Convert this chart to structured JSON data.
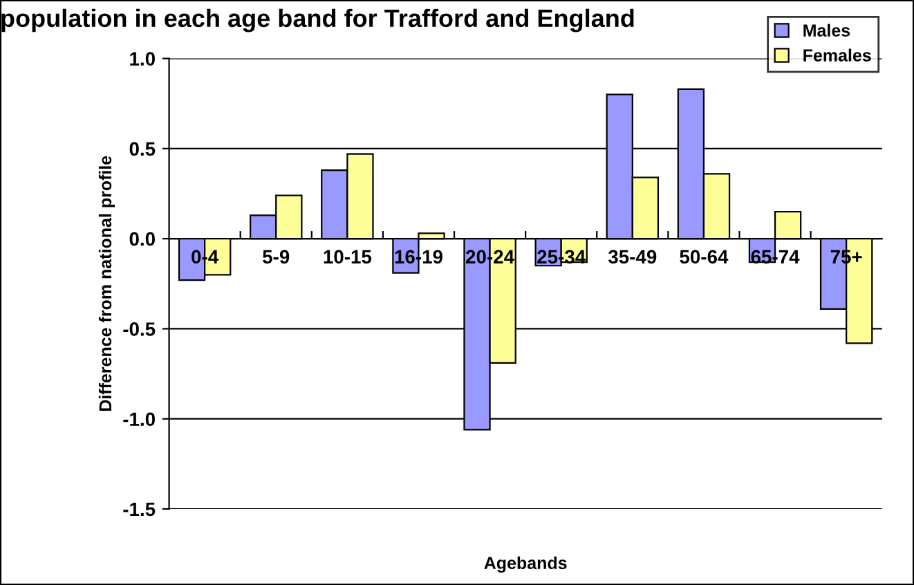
{
  "chart_data": {
    "type": "bar",
    "title": "population in each age band for Trafford and England",
    "xlabel": "Agebands",
    "ylabel": "Difference from national profile",
    "categories": [
      "0-4",
      "5-9",
      "10-15",
      "16-19",
      "20-24",
      "25-34",
      "35-49",
      "50-64",
      "65-74",
      "75+"
    ],
    "series": [
      {
        "name": "Males",
        "color": "#9999ff",
        "values": [
          -0.23,
          0.13,
          0.38,
          -0.19,
          -1.06,
          -0.15,
          0.8,
          0.83,
          -0.13,
          -0.39
        ]
      },
      {
        "name": "Females",
        "color": "#ffff99",
        "values": [
          -0.2,
          0.24,
          0.47,
          0.03,
          -0.69,
          -0.13,
          0.34,
          0.36,
          0.15,
          -0.58
        ]
      }
    ],
    "ylim": [
      -1.5,
      1.0
    ],
    "yticks": [
      {
        "value": -1.5,
        "label": "-1.5"
      },
      {
        "value": -1.0,
        "label": "-1.0"
      },
      {
        "value": -0.5,
        "label": "-0.5"
      },
      {
        "value": 0.0,
        "label": "0.0"
      },
      {
        "value": 0.5,
        "label": "0.5"
      },
      {
        "value": 1.0,
        "label": "1.0"
      }
    ],
    "grid": "y",
    "legend": "top right"
  }
}
